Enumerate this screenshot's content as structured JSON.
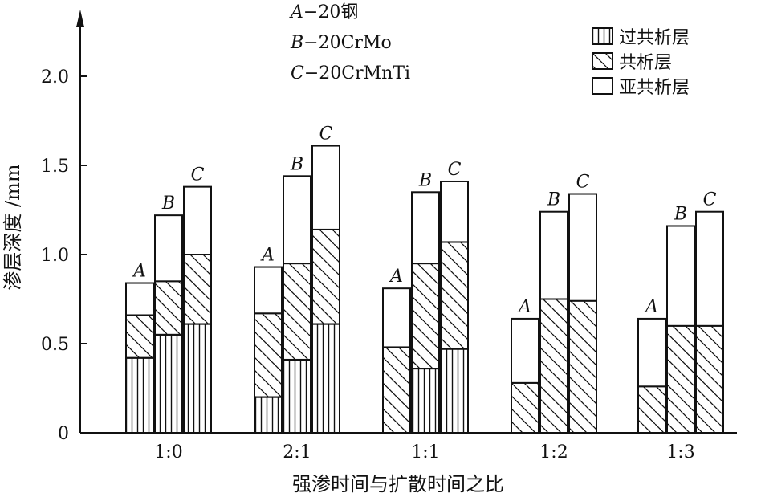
{
  "chart_data": {
    "type": "bar",
    "stacked": true,
    "title": "",
    "xlabel": "强渗时间与扩散时间之比",
    "ylabel": "渗层深度 /mm",
    "ylim": [
      0,
      2.2
    ],
    "yticks": [
      {
        "value": 0,
        "label": "0"
      },
      {
        "value": 0.5,
        "label": "0.5"
      },
      {
        "value": 1.0,
        "label": "1.0"
      },
      {
        "value": 1.5,
        "label": "1.5"
      },
      {
        "value": 2.0,
        "label": "2.0"
      }
    ],
    "categories": [
      "1:0",
      "2:1",
      "1:1",
      "1:2",
      "1:3"
    ],
    "bar_groups": [
      "A",
      "B",
      "C"
    ],
    "material_key": [
      {
        "letter": "A",
        "text": "−20钢"
      },
      {
        "letter": "B",
        "text": "−20CrMo"
      },
      {
        "letter": "C",
        "text": "−20CrMnTi"
      }
    ],
    "series": [
      {
        "name": "过共析层",
        "pattern": "vertical",
        "values": [
          [
            0.42,
            0.55,
            0.61
          ],
          [
            0.2,
            0.41,
            0.61
          ],
          [
            0.0,
            0.36,
            0.47
          ],
          [
            0.0,
            0.0,
            0.0
          ],
          [
            0.0,
            0.0,
            0.0
          ]
        ]
      },
      {
        "name": "共析层",
        "pattern": "diagonal",
        "values": [
          [
            0.24,
            0.3,
            0.39
          ],
          [
            0.47,
            0.54,
            0.53
          ],
          [
            0.48,
            0.59,
            0.6
          ],
          [
            0.28,
            0.75,
            0.74
          ],
          [
            0.26,
            0.6,
            0.6
          ]
        ]
      },
      {
        "name": "亚共析层",
        "pattern": "blank",
        "values": [
          [
            0.18,
            0.37,
            0.38
          ],
          [
            0.26,
            0.49,
            0.47
          ],
          [
            0.33,
            0.4,
            0.34
          ],
          [
            0.36,
            0.49,
            0.6
          ],
          [
            0.38,
            0.56,
            0.64
          ]
        ]
      }
    ],
    "legend": {
      "position": "top-right"
    },
    "grid": false
  }
}
